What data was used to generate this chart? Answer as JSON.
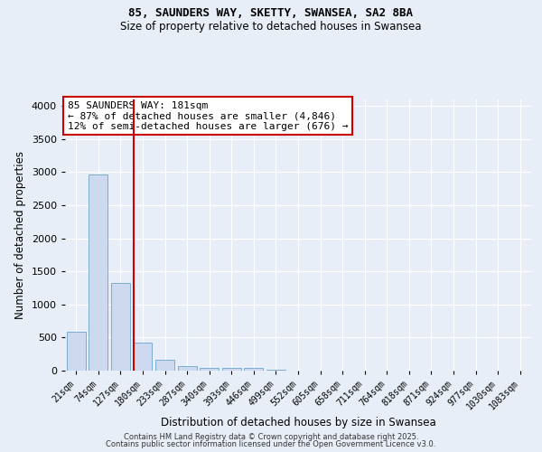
{
  "title1": "85, SAUNDERS WAY, SKETTY, SWANSEA, SA2 8BA",
  "title2": "Size of property relative to detached houses in Swansea",
  "xlabel": "Distribution of detached houses by size in Swansea",
  "ylabel": "Number of detached properties",
  "categories": [
    "21sqm",
    "74sqm",
    "127sqm",
    "180sqm",
    "233sqm",
    "287sqm",
    "340sqm",
    "393sqm",
    "446sqm",
    "499sqm",
    "552sqm",
    "605sqm",
    "658sqm",
    "711sqm",
    "764sqm",
    "818sqm",
    "871sqm",
    "924sqm",
    "977sqm",
    "1030sqm",
    "1083sqm"
  ],
  "values": [
    590,
    2970,
    1330,
    430,
    160,
    70,
    45,
    40,
    35,
    15,
    3,
    2,
    1,
    1,
    0,
    0,
    0,
    0,
    0,
    0,
    0
  ],
  "bar_color": "#ccd9ee",
  "bar_edgecolor": "#7aadd4",
  "vline_color": "#cc0000",
  "ylim": [
    0,
    4100
  ],
  "yticks": [
    0,
    500,
    1000,
    1500,
    2000,
    2500,
    3000,
    3500,
    4000
  ],
  "annotation_title": "85 SAUNDERS WAY: 181sqm",
  "annotation_line1": "← 87% of detached houses are smaller (4,846)",
  "annotation_line2": "12% of semi-detached houses are larger (676) →",
  "annotation_box_facecolor": "#ffffff",
  "annotation_box_edgecolor": "#cc0000",
  "bg_color": "#e8eef8",
  "grid_color": "#ffffff",
  "footer1": "Contains HM Land Registry data © Crown copyright and database right 2025.",
  "footer2": "Contains public sector information licensed under the Open Government Licence v3.0."
}
